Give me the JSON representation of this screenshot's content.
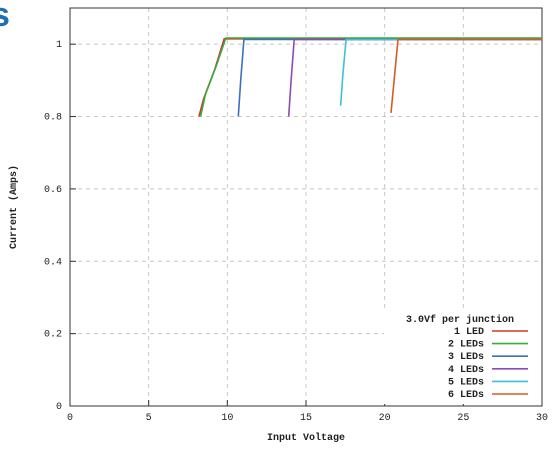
{
  "corner_glyph": "s",
  "colors": {
    "brand": "#1f6db3",
    "grid": "#c8c8c8",
    "axis": "#333333",
    "background": "#ffffff"
  },
  "chart_data": {
    "type": "line",
    "xlabel": "Input Voltage",
    "ylabel": "Current (Amps)",
    "xlim": [
      0,
      30
    ],
    "ylim": [
      0,
      1.1
    ],
    "xticks": [
      0,
      5,
      10,
      15,
      20,
      25,
      30
    ],
    "yticks": [
      0,
      0.2,
      0.4,
      0.6,
      0.8,
      1
    ],
    "xtick_labels": [
      "0",
      "5",
      "10",
      "15",
      "20",
      "25",
      "30"
    ],
    "ytick_labels": [
      "0",
      "0.2",
      "0.4",
      "0.6",
      "0.8",
      "1"
    ],
    "grid": true,
    "grid_style": "dashed",
    "legend_position": "bottom-right",
    "legend_title": "3.0Vf per junction",
    "series": [
      {
        "name": "1 LED",
        "color": "#d0372a",
        "x": [
          8.2,
          8.5,
          9.2,
          9.8,
          30
        ],
        "y": [
          0.8,
          0.85,
          0.93,
          1.015,
          1.015
        ]
      },
      {
        "name": "2 LEDs",
        "color": "#3aaa3a",
        "x": [
          8.3,
          8.6,
          9.3,
          9.9,
          30
        ],
        "y": [
          0.8,
          0.86,
          0.94,
          1.017,
          1.017
        ]
      },
      {
        "name": "3 LEDs",
        "color": "#3b6fc2",
        "x": [
          10.7,
          10.85,
          11.05,
          30
        ],
        "y": [
          0.8,
          0.9,
          1.013,
          1.013
        ]
      },
      {
        "name": "4 LEDs",
        "color": "#8e4bb5",
        "x": [
          13.9,
          14.05,
          14.25,
          30
        ],
        "y": [
          0.8,
          0.9,
          1.013,
          1.013
        ]
      },
      {
        "name": "5 LEDs",
        "color": "#3fbfd8",
        "x": [
          17.2,
          17.35,
          17.55,
          30
        ],
        "y": [
          0.83,
          0.92,
          1.013,
          1.013
        ]
      },
      {
        "name": "6 LEDs",
        "color": "#d85a22",
        "x": [
          20.4,
          20.6,
          20.85,
          30
        ],
        "y": [
          0.81,
          0.9,
          1.013,
          1.013
        ]
      }
    ]
  }
}
